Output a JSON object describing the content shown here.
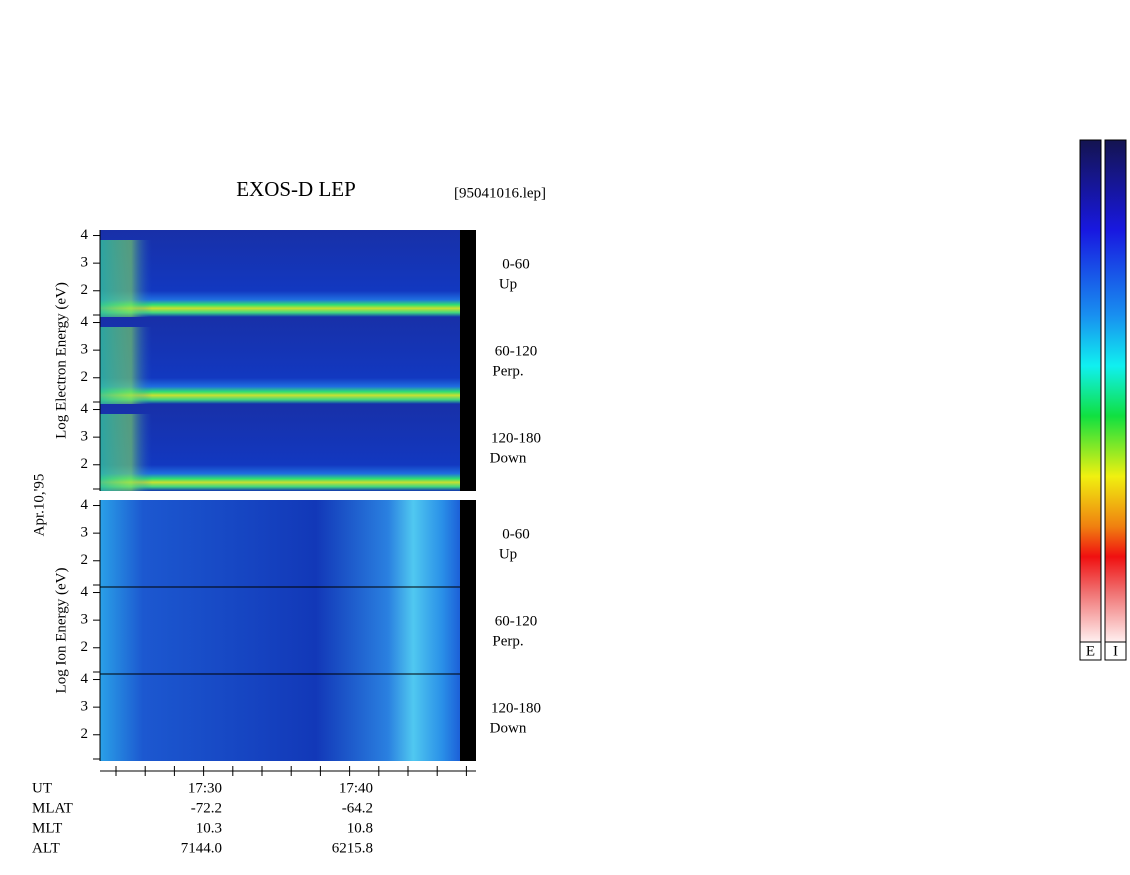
{
  "chart_data": {
    "type": "spectrogram",
    "title": "EXOS-D LEP",
    "file": "[95041016.lep]",
    "date": "Apr.10,'95",
    "groups": [
      {
        "kind": "electron",
        "label": "Log  Electron  Energy (eV)",
        "panels": [
          {
            "angle": "0-60",
            "direction": "Up"
          },
          {
            "angle": "60-120",
            "direction": "Perp."
          },
          {
            "angle": "120-180",
            "direction": "Down"
          }
        ]
      },
      {
        "kind": "ion",
        "label": "Log  Ion  Energy (eV)",
        "panels": [
          {
            "angle": "0-60",
            "direction": "Up"
          },
          {
            "angle": "60-120",
            "direction": "Perp."
          },
          {
            "angle": "120-180",
            "direction": "Down"
          }
        ]
      }
    ],
    "ylim": [
      1.05,
      4.2
    ],
    "yticks": [
      2,
      3,
      4
    ],
    "ephemeris": {
      "rows": [
        [
          "UT",
          "17:30",
          "17:40"
        ],
        [
          "MLAT",
          "-72.2",
          "-64.2"
        ],
        [
          "MLT",
          "10.3",
          "10.8"
        ],
        [
          "ALT",
          "7144.0",
          "6215.8"
        ]
      ]
    },
    "colorbars": [
      "E",
      "I"
    ]
  }
}
